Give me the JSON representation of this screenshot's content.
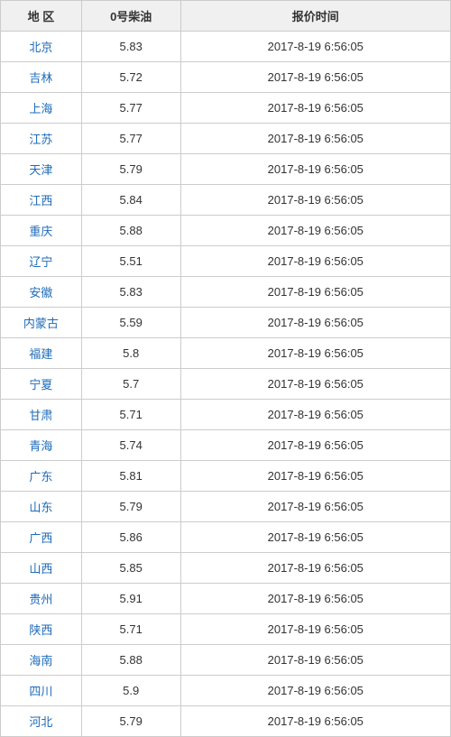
{
  "table": {
    "type": "table",
    "columns": [
      "地  区",
      "0号柴油",
      "报价时间"
    ],
    "header_bg": "#f0f0f0",
    "header_color": "#333333",
    "border_color": "#cccccc",
    "link_color": "#1e6bb8",
    "text_color": "#333333",
    "font_size": 13,
    "col_widths": [
      "18%",
      "22%",
      "60%"
    ],
    "rows": [
      {
        "region": "北京",
        "price": "5.83",
        "time": "2017-8-19 6:56:05"
      },
      {
        "region": "吉林",
        "price": "5.72",
        "time": "2017-8-19 6:56:05"
      },
      {
        "region": "上海",
        "price": "5.77",
        "time": "2017-8-19 6:56:05"
      },
      {
        "region": "江苏",
        "price": "5.77",
        "time": "2017-8-19 6:56:05"
      },
      {
        "region": "天津",
        "price": "5.79",
        "time": "2017-8-19 6:56:05"
      },
      {
        "region": "江西",
        "price": "5.84",
        "time": "2017-8-19 6:56:05"
      },
      {
        "region": "重庆",
        "price": "5.88",
        "time": "2017-8-19 6:56:05"
      },
      {
        "region": "辽宁",
        "price": "5.51",
        "time": "2017-8-19 6:56:05"
      },
      {
        "region": "安徽",
        "price": "5.83",
        "time": "2017-8-19 6:56:05"
      },
      {
        "region": "内蒙古",
        "price": "5.59",
        "time": "2017-8-19 6:56:05"
      },
      {
        "region": "福建",
        "price": "5.8",
        "time": "2017-8-19 6:56:05"
      },
      {
        "region": "宁夏",
        "price": "5.7",
        "time": "2017-8-19 6:56:05"
      },
      {
        "region": "甘肃",
        "price": "5.71",
        "time": "2017-8-19 6:56:05"
      },
      {
        "region": "青海",
        "price": "5.74",
        "time": "2017-8-19 6:56:05"
      },
      {
        "region": "广东",
        "price": "5.81",
        "time": "2017-8-19 6:56:05"
      },
      {
        "region": "山东",
        "price": "5.79",
        "time": "2017-8-19 6:56:05"
      },
      {
        "region": "广西",
        "price": "5.86",
        "time": "2017-8-19 6:56:05"
      },
      {
        "region": "山西",
        "price": "5.85",
        "time": "2017-8-19 6:56:05"
      },
      {
        "region": "贵州",
        "price": "5.91",
        "time": "2017-8-19 6:56:05"
      },
      {
        "region": "陕西",
        "price": "5.71",
        "time": "2017-8-19 6:56:05"
      },
      {
        "region": "海南",
        "price": "5.88",
        "time": "2017-8-19 6:56:05"
      },
      {
        "region": "四川",
        "price": "5.9",
        "time": "2017-8-19 6:56:05"
      },
      {
        "region": "河北",
        "price": "5.79",
        "time": "2017-8-19 6:56:05"
      }
    ]
  }
}
